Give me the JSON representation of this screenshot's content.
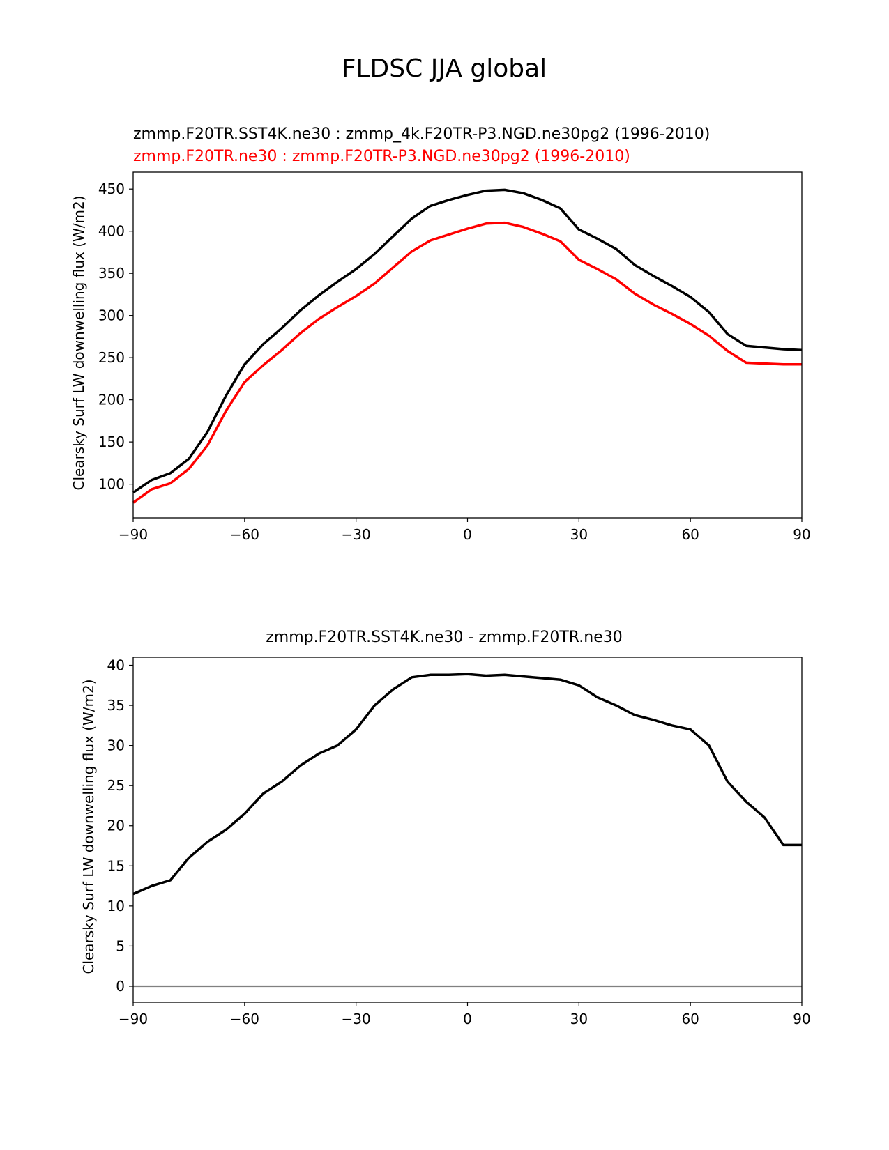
{
  "suptitle": "FLDSC JJA global",
  "chart_data": [
    {
      "type": "line",
      "title_line1": "zmmp.F20TR.SST4K.ne30 : zmmp_4k.F20TR-P3.NGD.ne30pg2 (1996-2010)",
      "title_line2": "zmmp.F20TR.ne30 : zmmp.F20TR-P3.NGD.ne30pg2 (1996-2010)",
      "ylabel": "Clearsky Surf LW downwelling flux (W/m2)",
      "xlabel": "",
      "xlim": [
        -90,
        90
      ],
      "ylim": [
        60,
        470
      ],
      "xticks": [
        -90,
        -60,
        -30,
        0,
        30,
        60,
        90
      ],
      "xtick_labels": [
        "−90",
        "−60",
        "−30",
        "0",
        "30",
        "60",
        "90"
      ],
      "yticks": [
        100,
        150,
        200,
        250,
        300,
        350,
        400,
        450
      ],
      "ytick_labels": [
        "100",
        "150",
        "200",
        "250",
        "300",
        "350",
        "400",
        "450"
      ],
      "x": [
        -90,
        -85,
        -80,
        -75,
        -70,
        -65,
        -60,
        -55,
        -50,
        -45,
        -40,
        -35,
        -30,
        -25,
        -20,
        -15,
        -10,
        -5,
        0,
        5,
        10,
        15,
        20,
        25,
        30,
        35,
        40,
        45,
        50,
        55,
        60,
        65,
        70,
        75,
        80,
        85,
        90
      ],
      "series": [
        {
          "name": "zmmp.F20TR.SST4K.ne30",
          "color": "#000000",
          "values": [
            90,
            105,
            113,
            130,
            162,
            205,
            242,
            266,
            285,
            306,
            324,
            340,
            355,
            373,
            394,
            415,
            430,
            437,
            443,
            448,
            449,
            445,
            437,
            427,
            402,
            391,
            379,
            360,
            347,
            335,
            322,
            304,
            278,
            264,
            262,
            260,
            259
          ]
        },
        {
          "name": "zmmp.F20TR.ne30",
          "color": "#ff0000",
          "values": [
            78,
            94,
            101,
            118,
            146,
            187,
            221,
            241,
            259,
            279,
            296,
            310,
            323,
            338,
            357,
            376,
            389,
            396,
            403,
            409,
            410,
            405,
            397,
            388,
            366,
            355,
            343,
            326,
            313,
            302,
            290,
            276,
            258,
            244,
            243,
            242,
            242
          ]
        }
      ]
    },
    {
      "type": "line",
      "title": "zmmp.F20TR.SST4K.ne30 - zmmp.F20TR.ne30",
      "ylabel": "Clearsky Surf LW downwelling flux (W/m2)",
      "xlabel": "",
      "xlim": [
        -90,
        90
      ],
      "ylim": [
        -2,
        41
      ],
      "xticks": [
        -90,
        -60,
        -30,
        0,
        30,
        60,
        90
      ],
      "xtick_labels": [
        "−90",
        "−60",
        "−30",
        "0",
        "30",
        "60",
        "90"
      ],
      "yticks": [
        0,
        5,
        10,
        15,
        20,
        25,
        30,
        35,
        40
      ],
      "ytick_labels": [
        "0",
        "5",
        "10",
        "15",
        "20",
        "25",
        "30",
        "35",
        "40"
      ],
      "zero_line_color": "#808080",
      "x": [
        -90,
        -85,
        -80,
        -75,
        -70,
        -65,
        -60,
        -55,
        -50,
        -45,
        -40,
        -35,
        -30,
        -25,
        -20,
        -15,
        -10,
        -5,
        0,
        5,
        10,
        15,
        20,
        25,
        30,
        35,
        40,
        45,
        50,
        55,
        60,
        65,
        70,
        72,
        75,
        80,
        85,
        90
      ],
      "series": [
        {
          "name": "zmmp.F20TR.SST4K.ne30 - zmmp.F20TR.ne30",
          "color": "#000000",
          "values": [
            11.5,
            12.5,
            13.2,
            16.0,
            18.0,
            19.5,
            21.5,
            24.0,
            25.5,
            27.5,
            29.0,
            30.0,
            32.0,
            35.0,
            37.0,
            38.5,
            38.8,
            38.8,
            38.9,
            38.7,
            38.8,
            38.6,
            38.4,
            38.2,
            37.5,
            36.0,
            35.0,
            33.8,
            33.2,
            32.5,
            32.0,
            30.0,
            25.5,
            24.5,
            23.0,
            21.0,
            17.6,
            17.6
          ]
        }
      ]
    }
  ]
}
